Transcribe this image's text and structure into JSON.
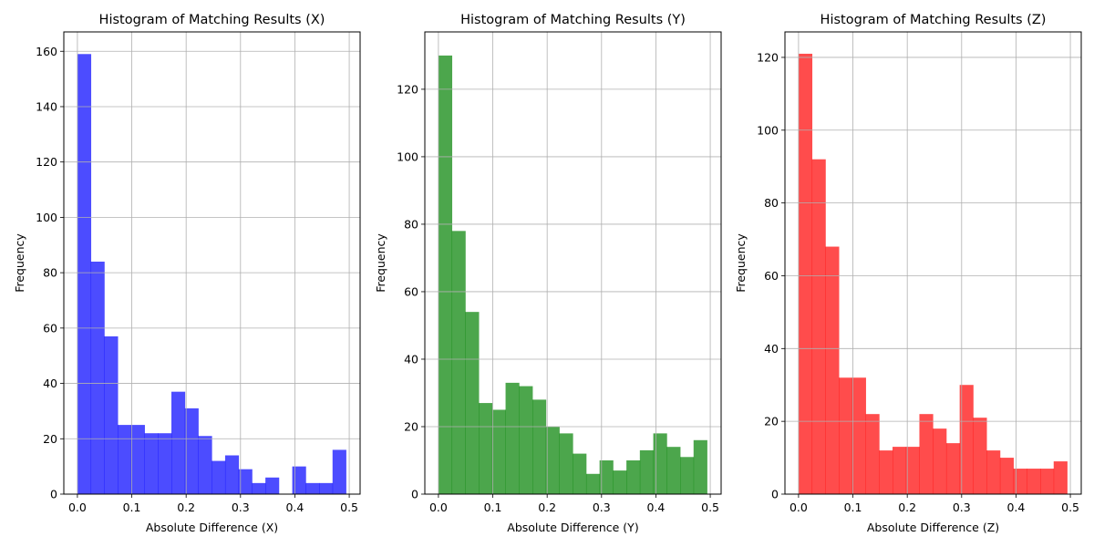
{
  "chart_data": [
    {
      "type": "bar",
      "title": "Histogram of Matching Results (X)",
      "xlabel": "Absolute Difference (X)",
      "ylabel": "Frequency",
      "color": "#0000ff",
      "alpha": 0.7,
      "grid": true,
      "xlim": [
        -0.025,
        0.52
      ],
      "ylim": [
        0,
        167
      ],
      "xticks": [
        0.0,
        0.1,
        0.2,
        0.3,
        0.4,
        0.5
      ],
      "xtick_labels": [
        "0.0",
        "0.1",
        "0.2",
        "0.3",
        "0.4",
        "0.5"
      ],
      "yticks": [
        0,
        20,
        40,
        60,
        80,
        100,
        120,
        140,
        160
      ],
      "ytick_labels": [
        "0",
        "20",
        "40",
        "60",
        "80",
        "100",
        "120",
        "140",
        "160"
      ],
      "bin_edges": [
        0.0,
        0.0247,
        0.0494,
        0.0741,
        0.0988,
        0.1235,
        0.1482,
        0.1729,
        0.1976,
        0.2223,
        0.247,
        0.2717,
        0.2964,
        0.3211,
        0.3458,
        0.3705,
        0.3952,
        0.4199,
        0.4446,
        0.4693,
        0.494
      ],
      "values": [
        159,
        84,
        57,
        25,
        25,
        22,
        22,
        37,
        31,
        21,
        12,
        14,
        9,
        4,
        6,
        0,
        10,
        4,
        4,
        16
      ]
    },
    {
      "type": "bar",
      "title": "Histogram of Matching Results (Y)",
      "xlabel": "Absolute Difference (Y)",
      "ylabel": "Frequency",
      "color": "#008000",
      "alpha": 0.7,
      "grid": true,
      "xlim": [
        -0.025,
        0.52
      ],
      "ylim": [
        0,
        137
      ],
      "xticks": [
        0.0,
        0.1,
        0.2,
        0.3,
        0.4,
        0.5
      ],
      "xtick_labels": [
        "0.0",
        "0.1",
        "0.2",
        "0.3",
        "0.4",
        "0.5"
      ],
      "yticks": [
        0,
        20,
        40,
        60,
        80,
        100,
        120
      ],
      "ytick_labels": [
        "0",
        "20",
        "40",
        "60",
        "80",
        "100",
        "120"
      ],
      "bin_edges": [
        0.0,
        0.0247,
        0.0494,
        0.0741,
        0.0988,
        0.1235,
        0.1482,
        0.1729,
        0.1976,
        0.2223,
        0.247,
        0.2717,
        0.2964,
        0.3211,
        0.3458,
        0.3705,
        0.3952,
        0.4199,
        0.4446,
        0.4693,
        0.494
      ],
      "values": [
        130,
        78,
        54,
        27,
        25,
        33,
        32,
        28,
        20,
        18,
        12,
        6,
        10,
        7,
        10,
        13,
        18,
        14,
        11,
        16
      ]
    },
    {
      "type": "bar",
      "title": "Histogram of Matching Results (Z)",
      "xlabel": "Absolute Difference (Z)",
      "ylabel": "Frequency",
      "color": "#ff0000",
      "alpha": 0.7,
      "grid": true,
      "xlim": [
        -0.025,
        0.52
      ],
      "ylim": [
        0,
        127
      ],
      "xticks": [
        0.0,
        0.1,
        0.2,
        0.3,
        0.4,
        0.5
      ],
      "xtick_labels": [
        "0.0",
        "0.1",
        "0.2",
        "0.3",
        "0.4",
        "0.5"
      ],
      "yticks": [
        0,
        20,
        40,
        60,
        80,
        100,
        120
      ],
      "ytick_labels": [
        "0",
        "20",
        "40",
        "60",
        "80",
        "100",
        "120"
      ],
      "bin_edges": [
        0.0,
        0.0247,
        0.0494,
        0.0741,
        0.0988,
        0.1235,
        0.1482,
        0.1729,
        0.1976,
        0.2223,
        0.247,
        0.2717,
        0.2964,
        0.3211,
        0.3458,
        0.3705,
        0.3952,
        0.4199,
        0.4446,
        0.4693,
        0.494
      ],
      "values": [
        121,
        92,
        68,
        32,
        32,
        22,
        12,
        13,
        13,
        22,
        18,
        14,
        30,
        21,
        12,
        10,
        7,
        7,
        7,
        9
      ]
    }
  ]
}
